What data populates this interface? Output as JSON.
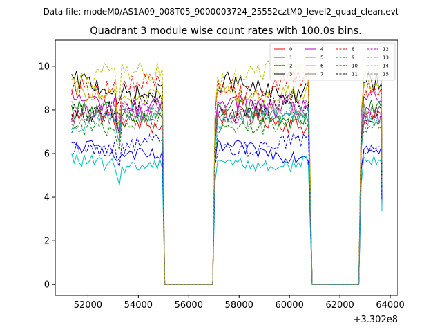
{
  "suptitle": "Data file: modeM0/AS1A09_008T05_9000003724_25552cztM0_level2_quad_clean.evt",
  "chart_data": {
    "type": "line",
    "title": "Quadrant 3 module wise count rates with 100.0s bins.",
    "xlabel": "",
    "ylabel": "",
    "x_offset_label": "+3.302e8",
    "xlim": [
      50700,
      64300
    ],
    "ylim": [
      -0.5,
      11.2
    ],
    "x_ticks": [
      52000,
      54000,
      56000,
      58000,
      60000,
      62000,
      64000
    ],
    "x_tick_labels": [
      "52000",
      "54000",
      "56000",
      "58000",
      "60000",
      "62000",
      "64000"
    ],
    "y_ticks": [
      0,
      2,
      4,
      6,
      8,
      10
    ],
    "y_tick_labels": [
      "0",
      "2",
      "4",
      "6",
      "8",
      "10"
    ],
    "legend_position": "top-right",
    "segments": [
      {
        "start": 51350,
        "end": 54950
      },
      {
        "start": 57050,
        "end": 60800
      },
      {
        "start": 62850,
        "end": 63650
      }
    ],
    "series": [
      {
        "name": "0",
        "color": "#ff0000",
        "dash": "solid",
        "level": 7.5
      },
      {
        "name": "1",
        "color": "#008000",
        "dash": "solid",
        "level": 7.8
      },
      {
        "name": "2",
        "color": "#0000ff",
        "dash": "solid",
        "level": 6.1
      },
      {
        "name": "3",
        "color": "#000000",
        "dash": "solid",
        "level": 9.0
      },
      {
        "name": "4",
        "color": "#bf00bf",
        "dash": "solid",
        "level": 8.3
      },
      {
        "name": "5",
        "color": "#00bfbf",
        "dash": "solid",
        "level": 5.6
      },
      {
        "name": "6",
        "color": "#bfbf00",
        "dash": "solid",
        "level": 8.8
      },
      {
        "name": "7",
        "color": "#808080",
        "dash": "solid",
        "level": 7.9
      },
      {
        "name": "8",
        "color": "#ff0000",
        "dash": "dashed",
        "level": 9.2
      },
      {
        "name": "9",
        "color": "#008000",
        "dash": "dashed",
        "level": 7.4
      },
      {
        "name": "10",
        "color": "#0000ff",
        "dash": "dashed",
        "level": 6.4
      },
      {
        "name": "11",
        "color": "#000000",
        "dash": "dashed",
        "level": 8.1
      },
      {
        "name": "12",
        "color": "#bf00bf",
        "dash": "dashed",
        "level": 8.0
      },
      {
        "name": "13",
        "color": "#00bfbf",
        "dash": "dashed",
        "level": 7.6
      },
      {
        "name": "14",
        "color": "#bfbf00",
        "dash": "dashed",
        "level": 9.5
      },
      {
        "name": "15",
        "color": "#808080",
        "dash": "dashed",
        "level": 7.7
      }
    ]
  }
}
